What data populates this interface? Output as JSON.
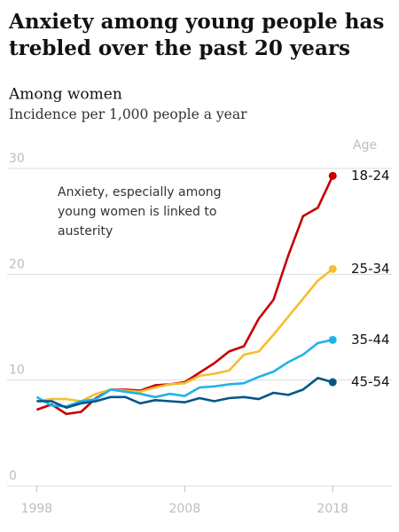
{
  "chart_data": {
    "type": "line",
    "title": [
      "Anxiety among young people has",
      "trebled over the past 20 years"
    ],
    "subtitle": "Among women",
    "y_label": "Incidence per 1,000 people a year",
    "legend_title": "Age",
    "annotation": [
      "Anxiety, especially among",
      "young women is linked to",
      "austerity"
    ],
    "x": [
      1998,
      1999,
      2000,
      2001,
      2002,
      2003,
      2004,
      2005,
      2006,
      2007,
      2008,
      2009,
      2010,
      2011,
      2012,
      2013,
      2014,
      2015,
      2016,
      2017,
      2018
    ],
    "xlim": [
      1996,
      2022
    ],
    "xticks": [
      1998,
      2008,
      2018
    ],
    "ylim": [
      0,
      30
    ],
    "yticks": [
      0,
      10,
      20,
      30
    ],
    "grid": true,
    "series": [
      {
        "name": "18-24",
        "color": "#c70000",
        "values": [
          7.2,
          7.7,
          6.8,
          7.0,
          8.3,
          9.1,
          9.1,
          9.0,
          9.5,
          9.6,
          9.8,
          10.7,
          11.6,
          12.7,
          13.2,
          15.8,
          17.6,
          21.8,
          25.5,
          26.3,
          29.3
        ]
      },
      {
        "name": "25-34",
        "color": "#f5be2c",
        "values": [
          8.0,
          8.2,
          8.2,
          8.0,
          8.7,
          9.1,
          9.0,
          8.9,
          9.3,
          9.6,
          9.7,
          10.4,
          10.6,
          10.9,
          12.4,
          12.7,
          14.3,
          16.0,
          17.7,
          19.4,
          20.5
        ]
      },
      {
        "name": "35-44",
        "color": "#1fb2ea",
        "values": [
          8.4,
          7.6,
          7.5,
          8.0,
          8.2,
          9.1,
          8.9,
          8.7,
          8.4,
          8.7,
          8.5,
          9.3,
          9.4,
          9.6,
          9.7,
          10.3,
          10.8,
          11.7,
          12.4,
          13.5,
          13.8
        ]
      },
      {
        "name": "45-54",
        "color": "#005689",
        "values": [
          8.0,
          8.0,
          7.4,
          7.8,
          8.0,
          8.4,
          8.4,
          7.8,
          8.1,
          8.0,
          7.9,
          8.3,
          8.0,
          8.3,
          8.4,
          8.2,
          8.8,
          8.6,
          9.1,
          10.2,
          9.8
        ]
      }
    ]
  }
}
